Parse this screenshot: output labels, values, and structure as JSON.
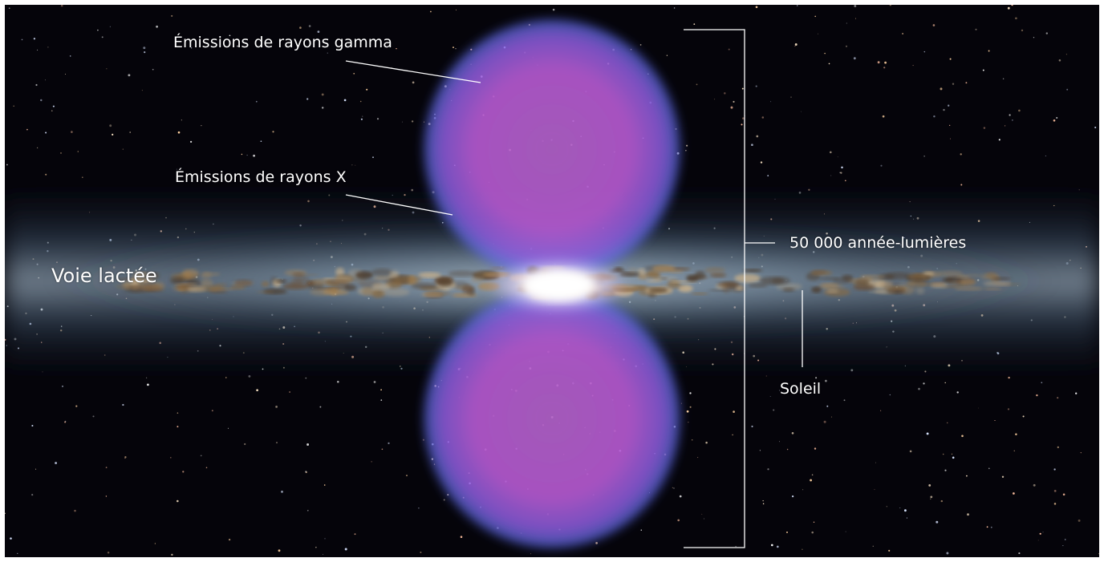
{
  "labels": {
    "gamma": "Émissions de rayons gamma",
    "xray": "Émissions de rayons X",
    "milky_way": "Voie lactée",
    "scale": "50 000 année-lumières",
    "sun": "Soleil"
  },
  "colors": {
    "space": "#05040a",
    "bubble_core": "#b65ad0",
    "bubble_edge": "#5a6ee0",
    "galactic_band": "#9fb6c8",
    "dust_lane": "#7a5a34",
    "core_glow": "#ffffff",
    "annotation": "#ffffff"
  }
}
